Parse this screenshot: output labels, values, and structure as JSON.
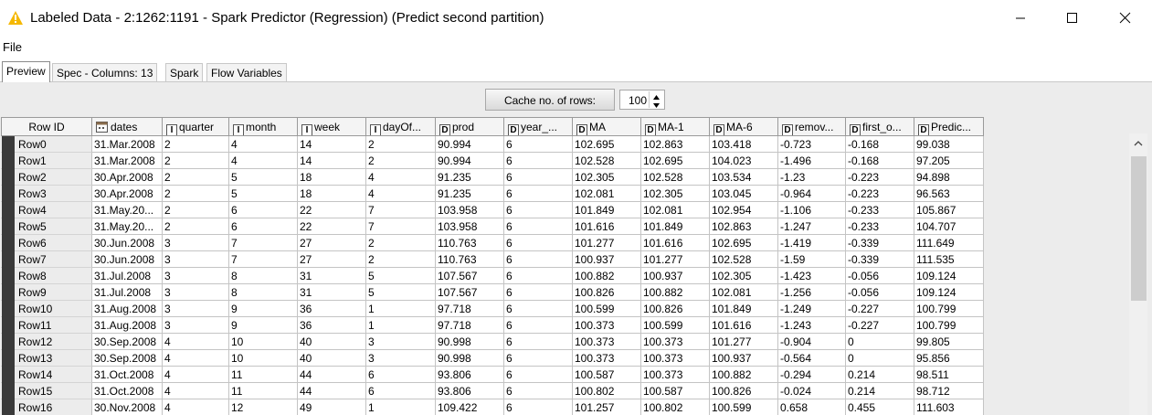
{
  "window": {
    "title": "Labeled Data - 2:1262:1191 - Spark Predictor (Regression) (Predict second partition)",
    "accent_warning_color": "#f5b800",
    "controls": {
      "minimize_icon": "minimize-icon",
      "maximize_icon": "maximize-icon",
      "close_icon": "close-icon"
    }
  },
  "menu": {
    "file_label": "File"
  },
  "tabs": [
    {
      "label": "Preview"
    },
    {
      "label": "Spec - Columns: 13"
    },
    {
      "label": "Spark"
    },
    {
      "label": "Flow Variables"
    }
  ],
  "cache": {
    "label": "Cache no. of rows:",
    "value": "100"
  },
  "table": {
    "row_id_header": "Row ID",
    "columns": [
      {
        "type": "date",
        "label": "dates"
      },
      {
        "type": "I",
        "label": "quarter"
      },
      {
        "type": "I",
        "label": "month"
      },
      {
        "type": "I",
        "label": "week"
      },
      {
        "type": "I",
        "label": "dayOf..."
      },
      {
        "type": "D",
        "label": "prod"
      },
      {
        "type": "D",
        "label": "year_..."
      },
      {
        "type": "D",
        "label": "MA"
      },
      {
        "type": "D",
        "label": "MA-1"
      },
      {
        "type": "D",
        "label": "MA-6"
      },
      {
        "type": "D",
        "label": "remov..."
      },
      {
        "type": "D",
        "label": "first_o..."
      },
      {
        "type": "D",
        "label": "Predic..."
      }
    ],
    "rows": [
      {
        "id": "Row0",
        "cells": [
          "31.Mar.2008",
          "2",
          "4",
          "14",
          "2",
          "90.994",
          "6",
          "102.695",
          "102.863",
          "103.418",
          "-0.723",
          "-0.168",
          "99.038"
        ]
      },
      {
        "id": "Row1",
        "cells": [
          "31.Mar.2008",
          "2",
          "4",
          "14",
          "2",
          "90.994",
          "6",
          "102.528",
          "102.695",
          "104.023",
          "-1.496",
          "-0.168",
          "97.205"
        ]
      },
      {
        "id": "Row2",
        "cells": [
          "30.Apr.2008",
          "2",
          "5",
          "18",
          "4",
          "91.235",
          "6",
          "102.305",
          "102.528",
          "103.534",
          "-1.23",
          "-0.223",
          "94.898"
        ]
      },
      {
        "id": "Row3",
        "cells": [
          "30.Apr.2008",
          "2",
          "5",
          "18",
          "4",
          "91.235",
          "6",
          "102.081",
          "102.305",
          "103.045",
          "-0.964",
          "-0.223",
          "96.563"
        ]
      },
      {
        "id": "Row4",
        "cells": [
          "31.May.20...",
          "2",
          "6",
          "22",
          "7",
          "103.958",
          "6",
          "101.849",
          "102.081",
          "102.954",
          "-1.106",
          "-0.233",
          "105.867"
        ]
      },
      {
        "id": "Row5",
        "cells": [
          "31.May.20...",
          "2",
          "6",
          "22",
          "7",
          "103.958",
          "6",
          "101.616",
          "101.849",
          "102.863",
          "-1.247",
          "-0.233",
          "104.707"
        ]
      },
      {
        "id": "Row6",
        "cells": [
          "30.Jun.2008",
          "3",
          "7",
          "27",
          "2",
          "110.763",
          "6",
          "101.277",
          "101.616",
          "102.695",
          "-1.419",
          "-0.339",
          "111.649"
        ]
      },
      {
        "id": "Row7",
        "cells": [
          "30.Jun.2008",
          "3",
          "7",
          "27",
          "2",
          "110.763",
          "6",
          "100.937",
          "101.277",
          "102.528",
          "-1.59",
          "-0.339",
          "111.535"
        ]
      },
      {
        "id": "Row8",
        "cells": [
          "31.Jul.2008",
          "3",
          "8",
          "31",
          "5",
          "107.567",
          "6",
          "100.882",
          "100.937",
          "102.305",
          "-1.423",
          "-0.056",
          "109.124"
        ]
      },
      {
        "id": "Row9",
        "cells": [
          "31.Jul.2008",
          "3",
          "8",
          "31",
          "5",
          "107.567",
          "6",
          "100.826",
          "100.882",
          "102.081",
          "-1.256",
          "-0.056",
          "109.124"
        ]
      },
      {
        "id": "Row10",
        "cells": [
          "31.Aug.2008",
          "3",
          "9",
          "36",
          "1",
          "97.718",
          "6",
          "100.599",
          "100.826",
          "101.849",
          "-1.249",
          "-0.227",
          "100.799"
        ]
      },
      {
        "id": "Row11",
        "cells": [
          "31.Aug.2008",
          "3",
          "9",
          "36",
          "1",
          "97.718",
          "6",
          "100.373",
          "100.599",
          "101.616",
          "-1.243",
          "-0.227",
          "100.799"
        ]
      },
      {
        "id": "Row12",
        "cells": [
          "30.Sep.2008",
          "4",
          "10",
          "40",
          "3",
          "90.998",
          "6",
          "100.373",
          "100.373",
          "101.277",
          "-0.904",
          "0",
          "99.805"
        ]
      },
      {
        "id": "Row13",
        "cells": [
          "30.Sep.2008",
          "4",
          "10",
          "40",
          "3",
          "90.998",
          "6",
          "100.373",
          "100.373",
          "100.937",
          "-0.564",
          "0",
          "95.856"
        ]
      },
      {
        "id": "Row14",
        "cells": [
          "31.Oct.2008",
          "4",
          "11",
          "44",
          "6",
          "93.806",
          "6",
          "100.587",
          "100.373",
          "100.882",
          "-0.294",
          "0.214",
          "98.511"
        ]
      },
      {
        "id": "Row15",
        "cells": [
          "31.Oct.2008",
          "4",
          "11",
          "44",
          "6",
          "93.806",
          "6",
          "100.802",
          "100.587",
          "100.826",
          "-0.024",
          "0.214",
          "98.712"
        ]
      },
      {
        "id": "Row16",
        "cells": [
          "30.Nov.2008",
          "4",
          "12",
          "49",
          "1",
          "109.422",
          "6",
          "101.257",
          "100.802",
          "100.599",
          "0.658",
          "0.455",
          "111.603"
        ]
      }
    ]
  }
}
